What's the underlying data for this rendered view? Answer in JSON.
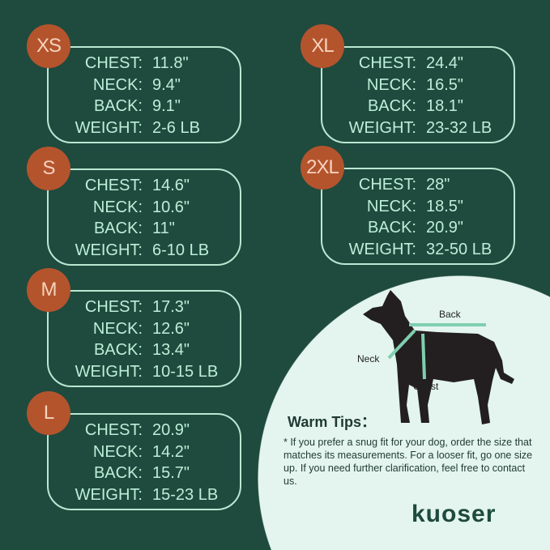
{
  "sizes": [
    {
      "size": "XS",
      "rows": [
        {
          "label": "CHEST:",
          "value": "11.8\""
        },
        {
          "label": "NECK:",
          "value": "9.4\""
        },
        {
          "label": "BACK:",
          "value": "9.1\""
        },
        {
          "label": "WEIGHT:",
          "value": "2-6 LB"
        }
      ]
    },
    {
      "size": "S",
      "rows": [
        {
          "label": "CHEST:",
          "value": "14.6\""
        },
        {
          "label": "NECK:",
          "value": "10.6\""
        },
        {
          "label": "BACK:",
          "value": "11\""
        },
        {
          "label": "WEIGHT:",
          "value": "6-10 LB"
        }
      ]
    },
    {
      "size": "M",
      "rows": [
        {
          "label": "CHEST:",
          "value": "17.3\""
        },
        {
          "label": "NECK:",
          "value": "12.6\""
        },
        {
          "label": "BACK:",
          "value": "13.4\""
        },
        {
          "label": "WEIGHT:",
          "value": "10-15 LB"
        }
      ]
    },
    {
      "size": "L",
      "rows": [
        {
          "label": "CHEST:",
          "value": "20.9\""
        },
        {
          "label": "NECK:",
          "value": "14.2\""
        },
        {
          "label": "BACK:",
          "value": "15.7\""
        },
        {
          "label": "WEIGHT:",
          "value": "15-23 LB"
        }
      ]
    },
    {
      "size": "XL",
      "rows": [
        {
          "label": "CHEST:",
          "value": "24.4\""
        },
        {
          "label": "NECK:",
          "value": "16.5\""
        },
        {
          "label": "BACK:",
          "value": "18.1\""
        },
        {
          "label": "WEIGHT:",
          "value": "23-32 LB"
        }
      ]
    },
    {
      "size": "2XL",
      "rows": [
        {
          "label": "CHEST:",
          "value": "28\""
        },
        {
          "label": "NECK:",
          "value": "18.5\""
        },
        {
          "label": "BACK:",
          "value": "20.9\""
        },
        {
          "label": "WEIGHT:",
          "value": "32-50 LB"
        }
      ]
    }
  ],
  "diagram": {
    "back": "Back",
    "neck": "Neck",
    "chest": "Chest"
  },
  "tips": {
    "title": "Warm Tips：",
    "text": "* If you prefer a snug fit for your dog, order the size that matches its measurements. For a looser fit, go one size up. If you need further clarification, feel free to contact us."
  },
  "brand": "kuoser",
  "colors": {
    "background": "#1f4a3e",
    "badge": "#b4542d",
    "text": "#bdeed8",
    "panel": "#e3f5ee"
  }
}
